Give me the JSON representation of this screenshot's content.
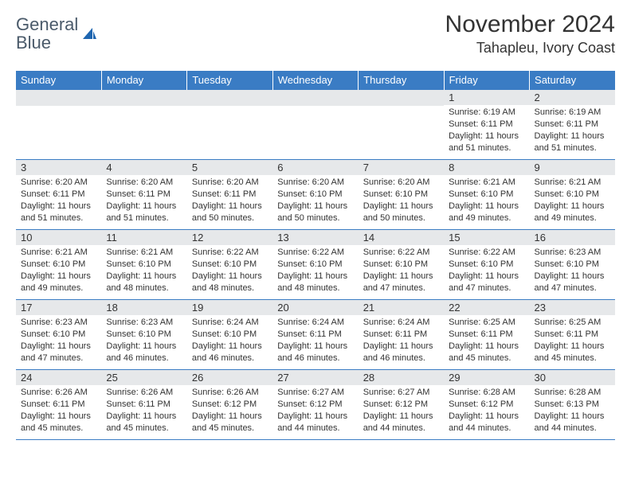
{
  "brand": {
    "text1": "General",
    "text2": "Blue",
    "icon_color": "#1f66b0"
  },
  "title": "November 2024",
  "location": "Tahapleu, Ivory Coast",
  "colors": {
    "header_bg": "#3a7cc4",
    "header_fg": "#ffffff",
    "day_num_bg": "#e6e8ea",
    "border": "#3a7cc4",
    "text": "#333333"
  },
  "weekdays": [
    "Sunday",
    "Monday",
    "Tuesday",
    "Wednesday",
    "Thursday",
    "Friday",
    "Saturday"
  ],
  "first_weekday_index": 5,
  "days": [
    {
      "n": 1,
      "sr": "6:19 AM",
      "ss": "6:11 PM",
      "dl": "11 hours and 51 minutes."
    },
    {
      "n": 2,
      "sr": "6:19 AM",
      "ss": "6:11 PM",
      "dl": "11 hours and 51 minutes."
    },
    {
      "n": 3,
      "sr": "6:20 AM",
      "ss": "6:11 PM",
      "dl": "11 hours and 51 minutes."
    },
    {
      "n": 4,
      "sr": "6:20 AM",
      "ss": "6:11 PM",
      "dl": "11 hours and 51 minutes."
    },
    {
      "n": 5,
      "sr": "6:20 AM",
      "ss": "6:11 PM",
      "dl": "11 hours and 50 minutes."
    },
    {
      "n": 6,
      "sr": "6:20 AM",
      "ss": "6:10 PM",
      "dl": "11 hours and 50 minutes."
    },
    {
      "n": 7,
      "sr": "6:20 AM",
      "ss": "6:10 PM",
      "dl": "11 hours and 50 minutes."
    },
    {
      "n": 8,
      "sr": "6:21 AM",
      "ss": "6:10 PM",
      "dl": "11 hours and 49 minutes."
    },
    {
      "n": 9,
      "sr": "6:21 AM",
      "ss": "6:10 PM",
      "dl": "11 hours and 49 minutes."
    },
    {
      "n": 10,
      "sr": "6:21 AM",
      "ss": "6:10 PM",
      "dl": "11 hours and 49 minutes."
    },
    {
      "n": 11,
      "sr": "6:21 AM",
      "ss": "6:10 PM",
      "dl": "11 hours and 48 minutes."
    },
    {
      "n": 12,
      "sr": "6:22 AM",
      "ss": "6:10 PM",
      "dl": "11 hours and 48 minutes."
    },
    {
      "n": 13,
      "sr": "6:22 AM",
      "ss": "6:10 PM",
      "dl": "11 hours and 48 minutes."
    },
    {
      "n": 14,
      "sr": "6:22 AM",
      "ss": "6:10 PM",
      "dl": "11 hours and 47 minutes."
    },
    {
      "n": 15,
      "sr": "6:22 AM",
      "ss": "6:10 PM",
      "dl": "11 hours and 47 minutes."
    },
    {
      "n": 16,
      "sr": "6:23 AM",
      "ss": "6:10 PM",
      "dl": "11 hours and 47 minutes."
    },
    {
      "n": 17,
      "sr": "6:23 AM",
      "ss": "6:10 PM",
      "dl": "11 hours and 47 minutes."
    },
    {
      "n": 18,
      "sr": "6:23 AM",
      "ss": "6:10 PM",
      "dl": "11 hours and 46 minutes."
    },
    {
      "n": 19,
      "sr": "6:24 AM",
      "ss": "6:10 PM",
      "dl": "11 hours and 46 minutes."
    },
    {
      "n": 20,
      "sr": "6:24 AM",
      "ss": "6:11 PM",
      "dl": "11 hours and 46 minutes."
    },
    {
      "n": 21,
      "sr": "6:24 AM",
      "ss": "6:11 PM",
      "dl": "11 hours and 46 minutes."
    },
    {
      "n": 22,
      "sr": "6:25 AM",
      "ss": "6:11 PM",
      "dl": "11 hours and 45 minutes."
    },
    {
      "n": 23,
      "sr": "6:25 AM",
      "ss": "6:11 PM",
      "dl": "11 hours and 45 minutes."
    },
    {
      "n": 24,
      "sr": "6:26 AM",
      "ss": "6:11 PM",
      "dl": "11 hours and 45 minutes."
    },
    {
      "n": 25,
      "sr": "6:26 AM",
      "ss": "6:11 PM",
      "dl": "11 hours and 45 minutes."
    },
    {
      "n": 26,
      "sr": "6:26 AM",
      "ss": "6:12 PM",
      "dl": "11 hours and 45 minutes."
    },
    {
      "n": 27,
      "sr": "6:27 AM",
      "ss": "6:12 PM",
      "dl": "11 hours and 44 minutes."
    },
    {
      "n": 28,
      "sr": "6:27 AM",
      "ss": "6:12 PM",
      "dl": "11 hours and 44 minutes."
    },
    {
      "n": 29,
      "sr": "6:28 AM",
      "ss": "6:12 PM",
      "dl": "11 hours and 44 minutes."
    },
    {
      "n": 30,
      "sr": "6:28 AM",
      "ss": "6:13 PM",
      "dl": "11 hours and 44 minutes."
    }
  ],
  "labels": {
    "sunrise": "Sunrise:",
    "sunset": "Sunset:",
    "daylight": "Daylight:"
  }
}
